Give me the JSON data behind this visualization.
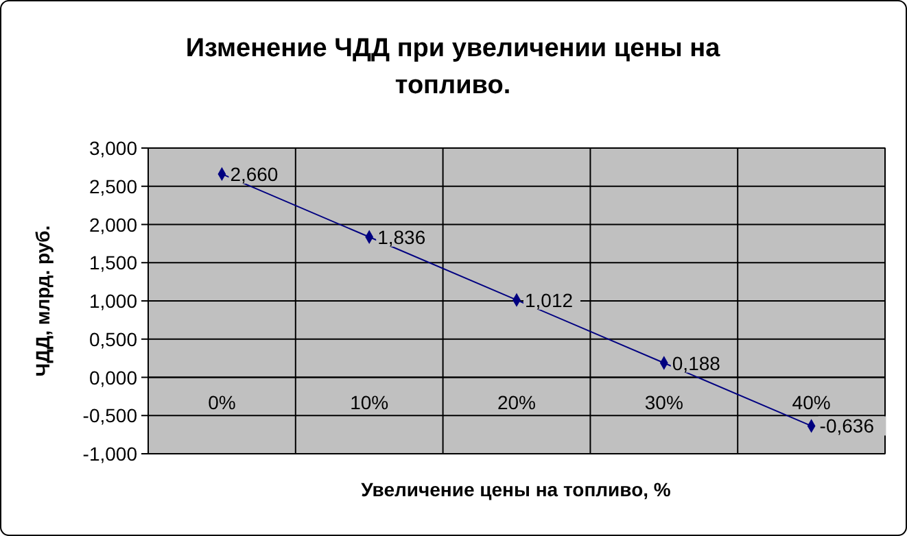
{
  "chart_data": {
    "type": "line",
    "title": "Изменение ЧДД при увеличении цены на топливо.",
    "xlabel": "Увеличение цены на топливо, %",
    "ylabel": "ЧДД, млрд. руб.",
    "categories": [
      "0%",
      "10%",
      "20%",
      "30%",
      "40%"
    ],
    "series": [
      {
        "color": "#000080",
        "values": [
          2.66,
          1.836,
          1.012,
          0.188,
          -0.636
        ],
        "value_labels": [
          "2,660",
          "1,836",
          "1,012",
          "0,188",
          "-0,636"
        ]
      }
    ],
    "ylim": [
      -1,
      3
    ],
    "yticks": [
      {
        "value": -1,
        "label": "-1,000"
      },
      {
        "value": -0.5,
        "label": "-0,500"
      },
      {
        "value": 0,
        "label": "0,000"
      },
      {
        "value": 0.5,
        "label": "0,500"
      },
      {
        "value": 1,
        "label": "1,000"
      },
      {
        "value": 1.5,
        "label": "1,500"
      },
      {
        "value": 2,
        "label": "2,000"
      },
      {
        "value": 2.5,
        "label": "2,500"
      },
      {
        "value": 3,
        "label": "3,000"
      }
    ],
    "grid": true,
    "marker": "diamond",
    "line_style": "solid"
  }
}
